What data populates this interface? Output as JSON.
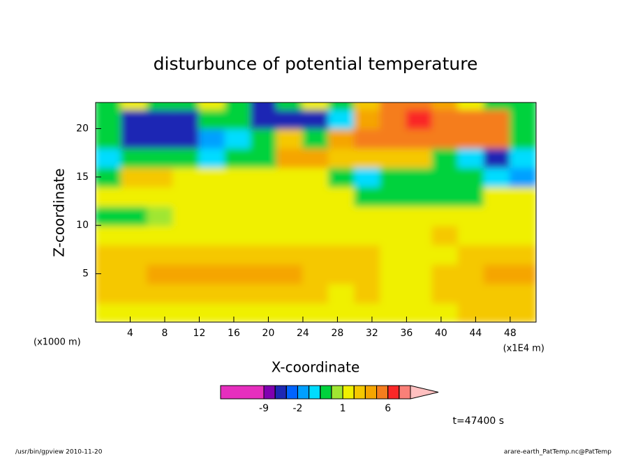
{
  "chart_data": {
    "type": "contour",
    "title": "disturbunce of potential temperature",
    "x_label": "X-coordinate",
    "y_label": "Z-coordinate",
    "x_unit": "(x1000 m)",
    "x_unit_right": "(x1E4 m)",
    "time_label": "t=47400 s",
    "footer_left": "/usr/bin/gpview  2010-11-20",
    "footer_right": "arare-earth_PatTemp.nc@PatTemp",
    "xlim": [
      0,
      51
    ],
    "ylim": [
      0,
      22.7
    ],
    "xticks": [
      4,
      8,
      12,
      16,
      20,
      24,
      28,
      32,
      36,
      40,
      44,
      48
    ],
    "yticks": [
      5,
      10,
      15,
      20
    ],
    "x": [
      1.5,
      4.5,
      7.5,
      10.5,
      13.5,
      16.5,
      19.5,
      22.5,
      25.5,
      28.5,
      31.5,
      34.5,
      37.5,
      40.5,
      43.5,
      46.5,
      49.5
    ],
    "y": [
      1,
      3,
      5,
      7,
      9,
      11,
      13,
      15,
      17,
      19,
      21,
      23
    ],
    "z": [
      [
        1.5,
        1.5,
        1.5,
        1.5,
        1.5,
        1.5,
        1.5,
        1.5,
        1.5,
        1.5,
        1.5,
        1.5,
        1.5,
        1.5,
        2.5,
        2.5,
        2.5
      ],
      [
        2.5,
        2.5,
        2.5,
        2.5,
        2.5,
        2.5,
        2.5,
        2.5,
        2.5,
        1.5,
        2.5,
        1.5,
        1.5,
        2.5,
        2.5,
        2.5,
        2.5
      ],
      [
        2.5,
        2.5,
        3.5,
        3.5,
        3.5,
        3.5,
        3.5,
        3.5,
        2.5,
        2.5,
        2.5,
        1.5,
        1.5,
        2.5,
        2.5,
        3.5,
        3.5
      ],
      [
        2.5,
        2.5,
        2.5,
        2.5,
        2.5,
        2.5,
        2.5,
        2.5,
        2.5,
        2.5,
        2.5,
        1.5,
        1.5,
        1.5,
        2.5,
        2.5,
        2.5
      ],
      [
        1.5,
        1.5,
        1.5,
        1.5,
        1.5,
        1.5,
        1.5,
        1.5,
        1.5,
        1.5,
        1.5,
        1.5,
        1.5,
        2.5,
        1.5,
        1.5,
        1.5
      ],
      [
        0,
        0,
        0.8,
        1.5,
        1.5,
        1.5,
        1.5,
        1.5,
        1.5,
        1.5,
        1.5,
        1.5,
        1.5,
        1.5,
        1.5,
        1.5,
        1.5
      ],
      [
        1.5,
        1.5,
        1.5,
        1.5,
        1.5,
        1.5,
        1.5,
        1.5,
        1.5,
        1.5,
        0,
        0,
        0,
        0,
        0,
        1.5,
        1.5
      ],
      [
        0,
        2.5,
        2.5,
        1.5,
        1.5,
        1.5,
        1.5,
        1.5,
        1.5,
        0,
        -0.7,
        0,
        0,
        0,
        0,
        -0.7,
        -1.5
      ],
      [
        -0.7,
        0,
        0,
        0,
        -0.7,
        0,
        0,
        3.5,
        3.5,
        2.5,
        2.5,
        2.5,
        2.5,
        0,
        -0.7,
        -3.5,
        -0.7
      ],
      [
        0,
        -4,
        -4,
        -4,
        -1.5,
        -0.7,
        0,
        2.5,
        0,
        3.5,
        5,
        5,
        5,
        5,
        5,
        5,
        0
      ],
      [
        0,
        -4,
        -4,
        -4,
        0,
        0,
        -4,
        -4,
        -4,
        -1,
        3.5,
        5,
        7,
        5,
        5,
        5,
        0
      ],
      [
        0,
        1.5,
        0,
        0,
        1.5,
        0,
        -4,
        0,
        1.5,
        0,
        2.5,
        5,
        5,
        3.5,
        1.5,
        0,
        0
      ]
    ],
    "levels": [
      -9,
      -6,
      -3,
      -2,
      -1,
      -0.5,
      0.5,
      1,
      2,
      3,
      4,
      6,
      9,
      12
    ],
    "colors": [
      "#e62ebe",
      "#8000b0",
      "#1e28b4",
      "#0064ff",
      "#00a0ff",
      "#00dcff",
      "#00d23c",
      "#a0e632",
      "#f0f000",
      "#f5c800",
      "#f5a500",
      "#f57d1e",
      "#fa2828",
      "#fa8078",
      "#ffc0c0"
    ],
    "colorbar_ticks": [
      -9,
      -2,
      1,
      6
    ]
  }
}
